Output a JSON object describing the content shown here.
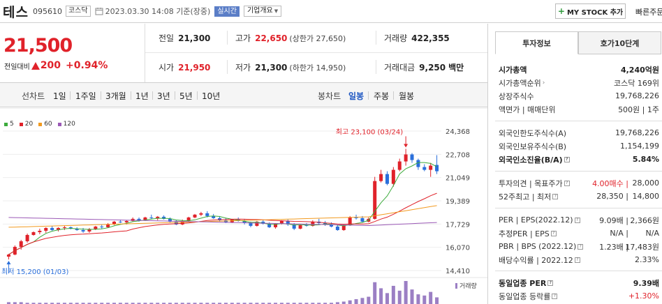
{
  "header": {
    "name": "테스",
    "code": "095610",
    "market": "코스닥",
    "datetime": "2023.03.30 14:08 기준(장중)",
    "realtime": "실시간",
    "company_info": "기업개요",
    "mystock": "MY STOCK 추가",
    "fast_order": "빠른주문"
  },
  "price": {
    "current": "21,500",
    "change_label": "전일대비",
    "change": "200",
    "change_pct": "+0.94%"
  },
  "info": {
    "prev_close_label": "전일",
    "prev_close": "21,300",
    "high_label": "고가",
    "high": "22,650",
    "upper_limit": "(상한가 27,650)",
    "volume_label": "거래량",
    "volume": "422,355",
    "open_label": "시가",
    "open": "21,950",
    "low_label": "저가",
    "low": "21,300",
    "lower_limit": "(하한가 14,950)",
    "amount_label": "거래대금",
    "amount": "9,250",
    "amount_unit": "백만"
  },
  "period_bar": {
    "line_title": "선차트",
    "line_periods": [
      "1일",
      "1주일",
      "3개월",
      "1년",
      "3년",
      "5년",
      "10년"
    ],
    "candle_title": "봉차트",
    "candle_periods": [
      "일봉",
      "주봉",
      "월봉"
    ],
    "active_candle": "일봉"
  },
  "chart_data": {
    "type": "candlestick",
    "moving_averages": [
      {
        "name": "5",
        "color": "#3cab3c"
      },
      {
        "name": "20",
        "color": "#e0222a"
      },
      {
        "name": "60",
        "color": "#f29a1f"
      },
      {
        "name": "120",
        "color": "#9b59b6"
      }
    ],
    "y_ticks": [
      "24,368",
      "22,708",
      "21,049",
      "19,389",
      "17,729",
      "16,070",
      "14,410"
    ],
    "ylim": [
      14410,
      24368
    ],
    "max_label": "최고 23,100 (03/24)",
    "min_label": "최저 15,200 (01/03)",
    "volume_label": "거래량",
    "candles": [
      [
        15400,
        15600,
        15200,
        15550
      ],
      [
        15550,
        16200,
        15500,
        16100
      ],
      [
        16100,
        16600,
        15900,
        16500
      ],
      [
        16500,
        17050,
        16400,
        16950
      ],
      [
        16950,
        17200,
        16900,
        17150
      ],
      [
        17150,
        17400,
        17000,
        17250
      ],
      [
        17250,
        17500,
        17100,
        17450
      ],
      [
        17450,
        17600,
        17250,
        17300
      ],
      [
        17300,
        17500,
        17200,
        17450
      ],
      [
        17450,
        17600,
        17300,
        17500
      ],
      [
        17500,
        17550,
        17350,
        17400
      ],
      [
        17400,
        17500,
        17250,
        17300
      ],
      [
        17300,
        17450,
        17100,
        17200
      ],
      [
        17200,
        17450,
        17100,
        17350
      ],
      [
        17350,
        17600,
        17300,
        17550
      ],
      [
        17550,
        17700,
        17400,
        17500
      ],
      [
        17500,
        17800,
        17450,
        17700
      ],
      [
        17700,
        17950,
        17650,
        17900
      ],
      [
        17900,
        18050,
        17800,
        17850
      ],
      [
        17850,
        18000,
        17700,
        17950
      ],
      [
        17950,
        18200,
        17900,
        18100
      ],
      [
        18100,
        18200,
        17900,
        18000
      ],
      [
        18000,
        18250,
        17950,
        18200
      ],
      [
        18200,
        18400,
        18100,
        18150
      ],
      [
        18150,
        18300,
        18000,
        18250
      ],
      [
        18250,
        18350,
        18050,
        18100
      ],
      [
        18100,
        18200,
        17850,
        17900
      ],
      [
        17900,
        18000,
        17650,
        17700
      ],
      [
        17700,
        18050,
        17650,
        17950
      ],
      [
        17950,
        18250,
        17900,
        18200
      ],
      [
        18200,
        18450,
        18150,
        18400
      ],
      [
        18400,
        18600,
        18300,
        18500
      ],
      [
        18500,
        18650,
        18200,
        18300
      ],
      [
        18300,
        18450,
        18100,
        18150
      ],
      [
        18150,
        18300,
        17900,
        18000
      ],
      [
        18000,
        18150,
        17800,
        17850
      ],
      [
        17850,
        18100,
        17800,
        18050
      ],
      [
        18050,
        18200,
        17900,
        17950
      ],
      [
        17950,
        18100,
        17700,
        17800
      ],
      [
        17800,
        17900,
        17500,
        17600
      ],
      [
        17600,
        17950,
        17550,
        17900
      ],
      [
        17900,
        18050,
        17700,
        17750
      ],
      [
        17750,
        17850,
        17450,
        17500
      ],
      [
        17500,
        17800,
        17400,
        17750
      ],
      [
        17750,
        18000,
        17700,
        17950
      ],
      [
        17950,
        18050,
        17600,
        17700
      ],
      [
        17700,
        17800,
        17300,
        17400
      ],
      [
        17400,
        17700,
        17350,
        17650
      ],
      [
        17650,
        17800,
        17550,
        17600
      ],
      [
        17600,
        18000,
        17550,
        17900
      ],
      [
        17900,
        18100,
        17700,
        17800
      ],
      [
        17800,
        17950,
        17600,
        17700
      ],
      [
        17700,
        17850,
        17500,
        17550
      ],
      [
        17550,
        17700,
        17250,
        17300
      ],
      [
        17300,
        17700,
        17250,
        17650
      ],
      [
        17650,
        18300,
        17600,
        18200
      ],
      [
        18200,
        18400,
        18050,
        18150
      ],
      [
        18150,
        18300,
        17850,
        17900
      ],
      [
        17900,
        18200,
        17850,
        18100
      ],
      [
        18100,
        21100,
        18050,
        20800
      ],
      [
        20800,
        21600,
        20700,
        21300
      ],
      [
        21300,
        21500,
        20500,
        20600
      ],
      [
        20600,
        21800,
        20400,
        21600
      ],
      [
        21600,
        22400,
        21500,
        22200
      ],
      [
        22200,
        23100,
        21900,
        22700
      ],
      [
        22700,
        22800,
        22100,
        22300
      ],
      [
        22300,
        22400,
        21600,
        21800
      ],
      [
        21800,
        22000,
        21500,
        21600
      ],
      [
        21600,
        22100,
        21100,
        21900
      ],
      [
        21950,
        22650,
        21300,
        21500
      ]
    ],
    "volumes": [
      3,
      3,
      3,
      2,
      2,
      2,
      2,
      2,
      2,
      2,
      2,
      2,
      2,
      2,
      2,
      2,
      2,
      2,
      2,
      2,
      2,
      2,
      2,
      2,
      2,
      2,
      2,
      2,
      2,
      2,
      2,
      2,
      2,
      2,
      2,
      2,
      2,
      2,
      2,
      2,
      2,
      2,
      2,
      2,
      2,
      2,
      2,
      2,
      2,
      2,
      2,
      2,
      2,
      3,
      4,
      6,
      8,
      10,
      12,
      36,
      26,
      18,
      30,
      22,
      38,
      24,
      16,
      14,
      20,
      11
    ]
  },
  "invest_panel": {
    "tabs": [
      "투자정보",
      "호가10단계"
    ],
    "rows": [
      {
        "k": "시가총액",
        "v": "4,240억원",
        "kb": true,
        "vb": true
      },
      {
        "k": "시가총액순위",
        "v": "코스닥 169위",
        "arrow": true
      },
      {
        "k": "상장주식수",
        "v": "19,768,226"
      },
      {
        "k": "액면가 | 매매단위",
        "v": "500원 | 1주"
      },
      {
        "k": "외국인한도주식수(A)",
        "v": "19,768,226"
      },
      {
        "k": "외국인보유주식수(B)",
        "v": "1,154,199"
      },
      {
        "k": "외국인소진율(B/A)",
        "v": "5.84%",
        "kb": true,
        "vb": true,
        "help": true
      },
      {
        "k": "투자의견 | 목표주가",
        "v1": "4.00매수",
        "v": "28,000",
        "help": true,
        "v1red": true
      },
      {
        "k": "52주최고 | 최저",
        "v1": "28,350",
        "v": "14,800",
        "help": true
      },
      {
        "k": "PER | EPS(2022.12)",
        "v1": "9.09배",
        "v": "2,366원",
        "help": true
      },
      {
        "k": "추정PER | EPS",
        "v1": "N/A",
        "v": "N/A",
        "help": true
      },
      {
        "k": "PBR | BPS (2022.12)",
        "v1": "1.23배",
        "v": "17,483원",
        "help": true
      },
      {
        "k": "배당수익률 | 2022.12",
        "v": "2.33%",
        "help": true
      },
      {
        "k": "동일업종 PER",
        "v": "9.39배",
        "kb": true,
        "vb": true,
        "help": true
      },
      {
        "k": "동일업종 등락률",
        "v": "+1.30%",
        "vred": true,
        "help": true
      }
    ]
  }
}
